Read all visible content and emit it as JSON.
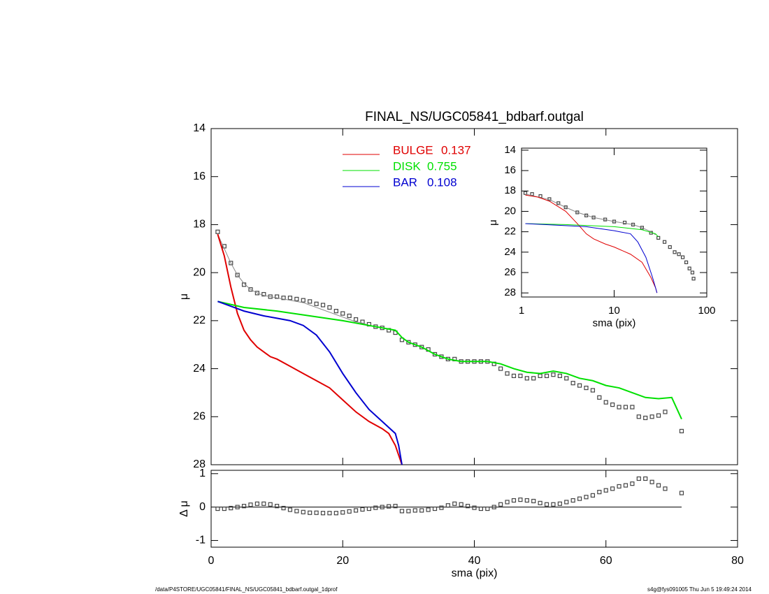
{
  "footer_left": "/data/P4STORE/UGC05841/FINAL_NS/UGC05841_bdbarf.outgal_1dprof",
  "footer_right": "s4g@fys091005  Thu Jun  5 19:49:24 2014",
  "chart_data": [
    {
      "type": "line",
      "title": "FINAL_NS/UGC05841_bdbarf.outgal",
      "ylabel": "μ",
      "xlim": [
        0,
        80
      ],
      "ylim": [
        14,
        28
      ],
      "y_inverted": true,
      "yticks": [
        14,
        16,
        18,
        20,
        22,
        24,
        26,
        28
      ],
      "series": [
        {
          "style": "points",
          "color": "#444444",
          "x": [
            1,
            2,
            3,
            4,
            5,
            6,
            7,
            8,
            9,
            10,
            11,
            12,
            13,
            14,
            15,
            16,
            17,
            18,
            19,
            20,
            21,
            22,
            23,
            24,
            25,
            26,
            27,
            28,
            29,
            30,
            31,
            32,
            33,
            34,
            35,
            36,
            37,
            38,
            39,
            40,
            41,
            42,
            43,
            44,
            45,
            46,
            47,
            48,
            49,
            50,
            51,
            52,
            53,
            54,
            55,
            56,
            57,
            58,
            59,
            60,
            61,
            62,
            63,
            64,
            65,
            66,
            67,
            68,
            69,
            71.5
          ],
          "values": [
            18.3,
            18.9,
            19.6,
            20.1,
            20.5,
            20.7,
            20.85,
            20.9,
            21.0,
            21.0,
            21.05,
            21.05,
            21.1,
            21.15,
            21.2,
            21.3,
            21.35,
            21.45,
            21.6,
            21.7,
            21.8,
            21.95,
            22.05,
            22.15,
            22.25,
            22.3,
            22.4,
            22.5,
            22.8,
            22.9,
            23.0,
            23.1,
            23.2,
            23.4,
            23.5,
            23.6,
            23.6,
            23.7,
            23.7,
            23.7,
            23.7,
            23.7,
            23.8,
            24.0,
            24.2,
            24.3,
            24.3,
            24.4,
            24.4,
            24.3,
            24.3,
            24.25,
            24.3,
            24.4,
            24.6,
            24.7,
            24.8,
            24.9,
            25.2,
            25.4,
            25.5,
            25.6,
            25.6,
            25.6,
            26.0,
            26.05,
            26.0,
            25.95,
            25.8,
            26.6
          ]
        },
        {
          "style": "line",
          "color": "#888888",
          "x": [
            1,
            2,
            3,
            4,
            5,
            6,
            7,
            8,
            9,
            10,
            11,
            12,
            13,
            14,
            15,
            16,
            17,
            18,
            19,
            20,
            21,
            22,
            23,
            24,
            25,
            26,
            27,
            28
          ],
          "values": [
            18.4,
            19.0,
            19.6,
            20.1,
            20.45,
            20.7,
            20.85,
            20.95,
            21.0,
            21.05,
            21.1,
            21.15,
            21.2,
            21.25,
            21.35,
            21.45,
            21.55,
            21.65,
            21.75,
            21.85,
            21.95,
            22.05,
            22.1,
            22.2,
            22.25,
            22.3,
            22.35,
            22.4
          ]
        },
        {
          "style": "line",
          "name": "BULGE",
          "fraction": 0.137,
          "color": "#e00000",
          "x": [
            1,
            2,
            3,
            4,
            5,
            6,
            7,
            8,
            9,
            10,
            12,
            14,
            16,
            18,
            20,
            22,
            24,
            26,
            27,
            28,
            29
          ],
          "values": [
            18.4,
            19.3,
            20.6,
            21.7,
            22.4,
            22.8,
            23.1,
            23.3,
            23.5,
            23.6,
            23.9,
            24.2,
            24.5,
            24.8,
            25.3,
            25.8,
            26.2,
            26.5,
            26.7,
            27.2,
            28.0
          ]
        },
        {
          "style": "line",
          "name": "DISK",
          "fraction": 0.755,
          "color": "#00e000",
          "x": [
            1,
            5,
            10,
            15,
            20,
            25,
            28,
            29,
            30,
            32,
            34,
            36,
            38,
            40,
            42,
            44,
            46,
            48,
            50,
            52,
            54,
            56,
            58,
            60,
            62,
            64,
            66,
            68,
            70,
            71.5
          ],
          "values": [
            21.2,
            21.45,
            21.6,
            21.8,
            22.0,
            22.25,
            22.4,
            22.7,
            22.9,
            23.1,
            23.4,
            23.6,
            23.7,
            23.7,
            23.7,
            23.8,
            24.0,
            24.15,
            24.2,
            24.1,
            24.2,
            24.4,
            24.5,
            24.7,
            24.8,
            25.0,
            25.2,
            25.25,
            25.2,
            26.1
          ]
        },
        {
          "style": "line",
          "name": "BAR",
          "fraction": 0.108,
          "color": "#0000d0",
          "x": [
            1,
            3,
            5,
            8,
            10,
            12,
            14,
            16,
            18,
            20,
            22,
            24,
            26,
            28,
            28.5,
            29
          ],
          "values": [
            21.2,
            21.4,
            21.6,
            21.8,
            21.9,
            22.0,
            22.2,
            22.6,
            23.3,
            24.2,
            25.0,
            25.7,
            26.2,
            26.7,
            27.2,
            28.0
          ]
        }
      ]
    },
    {
      "type": "line",
      "xlabel": "sma (pix)",
      "ylabel": "Δ μ",
      "xlim": [
        0,
        80
      ],
      "xticks": [
        0,
        20,
        40,
        60,
        80
      ],
      "ylim": [
        -1.2,
        1.1
      ],
      "yticks": [
        -1,
        0,
        1
      ],
      "hline": 0,
      "series": [
        {
          "style": "points",
          "color": "#444444",
          "x": [
            1,
            2,
            3,
            4,
            5,
            6,
            7,
            8,
            9,
            10,
            11,
            12,
            13,
            14,
            15,
            16,
            17,
            18,
            19,
            20,
            21,
            22,
            23,
            24,
            25,
            26,
            27,
            28,
            29,
            30,
            31,
            32,
            33,
            34,
            35,
            36,
            37,
            38,
            39,
            40,
            41,
            42,
            43,
            44,
            45,
            46,
            47,
            48,
            49,
            50,
            51,
            52,
            53,
            54,
            55,
            56,
            57,
            58,
            59,
            60,
            61,
            62,
            63,
            64,
            65,
            66,
            67,
            68,
            69,
            71.5
          ],
          "values": [
            -0.05,
            -0.05,
            -0.03,
            0,
            0.03,
            0.07,
            0.1,
            0.1,
            0.08,
            0.03,
            -0.03,
            -0.08,
            -0.12,
            -0.15,
            -0.17,
            -0.17,
            -0.18,
            -0.18,
            -0.18,
            -0.16,
            -0.13,
            -0.1,
            -0.07,
            -0.05,
            -0.02,
            0,
            0.02,
            0.03,
            -0.12,
            -0.12,
            -0.1,
            -0.1,
            -0.08,
            -0.05,
            -0.02,
            0.05,
            0.1,
            0.08,
            0.03,
            -0.02,
            -0.05,
            -0.05,
            0,
            0.08,
            0.15,
            0.2,
            0.22,
            0.2,
            0.18,
            0.12,
            0.08,
            0.08,
            0.1,
            0.15,
            0.2,
            0.25,
            0.3,
            0.35,
            0.45,
            0.5,
            0.55,
            0.62,
            0.65,
            0.7,
            0.85,
            0.85,
            0.75,
            0.65,
            0.55,
            0.42
          ]
        }
      ]
    },
    {
      "type": "line",
      "xlabel": "sma (pix)",
      "ylabel": "μ",
      "xlog": true,
      "xlim": [
        1,
        100
      ],
      "xticks": [
        1,
        10,
        100
      ],
      "ylim": [
        13.8,
        28.4
      ],
      "y_inverted": true,
      "yticks": [
        14,
        16,
        18,
        20,
        22,
        24,
        26,
        28
      ],
      "series": [
        {
          "style": "points",
          "color": "#444444",
          "x": [
            1.1,
            1.3,
            1.6,
            2,
            2.5,
            3,
            4,
            5,
            6,
            8,
            10,
            13,
            16,
            20,
            25,
            30,
            35,
            40,
            45,
            50,
            55,
            60,
            65,
            70,
            72
          ],
          "values": [
            18.2,
            18.3,
            18.5,
            18.8,
            19.2,
            19.6,
            20.1,
            20.4,
            20.6,
            20.8,
            21.0,
            21.1,
            21.3,
            21.6,
            22.1,
            22.6,
            23.0,
            23.5,
            24.0,
            24.2,
            24.5,
            25.0,
            25.6,
            26.0,
            26.6
          ]
        },
        {
          "style": "line",
          "color": "#888888",
          "x": [
            1.1,
            2,
            3,
            4,
            6,
            10,
            16,
            20,
            25,
            28
          ],
          "values": [
            18.3,
            18.85,
            19.6,
            20.1,
            20.6,
            21.0,
            21.3,
            21.6,
            22.0,
            22.3
          ]
        },
        {
          "style": "line",
          "color": "#e00000",
          "x": [
            1.1,
            1.5,
            2,
            3,
            4,
            5,
            6,
            8,
            10,
            15,
            20,
            25,
            28,
            29
          ],
          "values": [
            18.4,
            18.6,
            19.0,
            20.0,
            21.2,
            22.2,
            22.7,
            23.2,
            23.5,
            24.2,
            25.0,
            26.5,
            27.5,
            28.0
          ]
        },
        {
          "style": "line",
          "color": "#00e000",
          "x": [
            1.1,
            3,
            10,
            20,
            28,
            30
          ],
          "values": [
            21.2,
            21.3,
            21.5,
            21.8,
            22.2,
            22.5
          ]
        },
        {
          "style": "line",
          "color": "#0000d0",
          "x": [
            1.1,
            3,
            5,
            10,
            15,
            18,
            22,
            26,
            28,
            29
          ],
          "values": [
            21.2,
            21.4,
            21.5,
            21.9,
            22.2,
            23.0,
            24.5,
            26.5,
            27.5,
            28.0
          ]
        }
      ]
    }
  ]
}
